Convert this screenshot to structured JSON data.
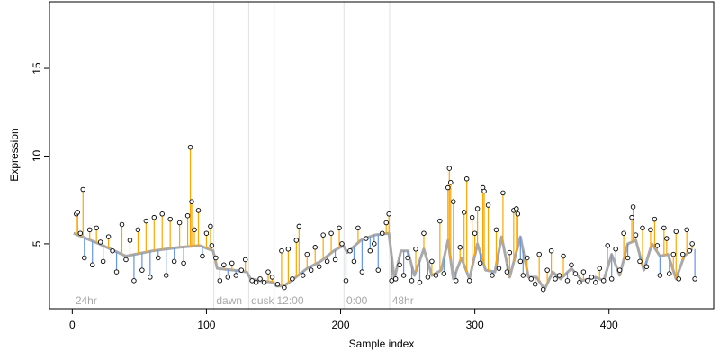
{
  "chart_data": {
    "type": "scatter",
    "title": "",
    "xlabel": "Sample index",
    "ylabel": "Expression",
    "xlim": [
      -17,
      478
    ],
    "ylim": [
      1.3,
      18.8
    ],
    "x_ticks": [
      0,
      100,
      200,
      300,
      400
    ],
    "y_ticks": [
      5,
      10,
      15
    ],
    "grid": false,
    "legend": "none",
    "colors": {
      "points_fill": "#ffffff",
      "points_stroke": "#000000",
      "up_segment": "#ffa500",
      "down_segment": "#6495ed",
      "model_line": "#a9a9a9",
      "divider": "#e0e0e0",
      "condition_text": "#a8a8a8"
    },
    "conditions": [
      {
        "label": "24hr",
        "start": 1
      },
      {
        "label": "dawn",
        "start": 106
      },
      {
        "label": "dusk",
        "start": 132
      },
      {
        "label": "12:00",
        "start": 151
      },
      {
        "label": "0:00",
        "start": 203
      },
      {
        "label": "48hr",
        "start": 237
      }
    ],
    "model_knots": [
      [
        1,
        5.6
      ],
      [
        20,
        5.0
      ],
      [
        40,
        4.3
      ],
      [
        60,
        4.6
      ],
      [
        80,
        4.8
      ],
      [
        95,
        4.9
      ],
      [
        105,
        4.6
      ],
      [
        108,
        3.6
      ],
      [
        120,
        3.5
      ],
      [
        130,
        3.4
      ],
      [
        133,
        3.0
      ],
      [
        140,
        2.9
      ],
      [
        150,
        2.8
      ],
      [
        152,
        2.6
      ],
      [
        158,
        2.6
      ],
      [
        165,
        3.0
      ],
      [
        175,
        3.6
      ],
      [
        185,
        4.0
      ],
      [
        195,
        4.6
      ],
      [
        202,
        4.9
      ],
      [
        205,
        4.5
      ],
      [
        215,
        5.2
      ],
      [
        225,
        5.5
      ],
      [
        236,
        5.6
      ],
      [
        240,
        3.0
      ],
      [
        245,
        4.6
      ],
      [
        250,
        4.6
      ],
      [
        255,
        3.2
      ],
      [
        262,
        4.7
      ],
      [
        268,
        3.2
      ],
      [
        275,
        3.5
      ],
      [
        280,
        5.2
      ],
      [
        284,
        3.0
      ],
      [
        290,
        4.2
      ],
      [
        296,
        3.0
      ],
      [
        302,
        5.0
      ],
      [
        308,
        3.5
      ],
      [
        315,
        3.4
      ],
      [
        320,
        5.4
      ],
      [
        326,
        3.1
      ],
      [
        334,
        5.4
      ],
      [
        340,
        3.1
      ],
      [
        346,
        3.1
      ],
      [
        352,
        2.4
      ],
      [
        358,
        3.4
      ],
      [
        364,
        3.0
      ],
      [
        372,
        3.6
      ],
      [
        380,
        2.9
      ],
      [
        390,
        3.1
      ],
      [
        396,
        2.9
      ],
      [
        402,
        4.4
      ],
      [
        408,
        3.2
      ],
      [
        414,
        5.0
      ],
      [
        420,
        5.2
      ],
      [
        426,
        3.5
      ],
      [
        432,
        5.0
      ],
      [
        438,
        4.3
      ],
      [
        444,
        4.4
      ],
      [
        450,
        3.0
      ],
      [
        456,
        4.3
      ],
      [
        462,
        4.7
      ]
    ],
    "point_samples": [
      [
        3,
        6.7
      ],
      [
        4,
        6.8
      ],
      [
        6,
        5.6
      ],
      [
        8,
        8.1
      ],
      [
        9,
        4.2
      ],
      [
        13,
        5.8
      ],
      [
        15,
        3.8
      ],
      [
        18,
        5.9
      ],
      [
        21,
        5.1
      ],
      [
        23,
        4.0
      ],
      [
        27,
        5.4
      ],
      [
        30,
        4.6
      ],
      [
        33,
        3.4
      ],
      [
        37,
        6.1
      ],
      [
        40,
        4.1
      ],
      [
        43,
        5.2
      ],
      [
        46,
        2.9
      ],
      [
        49,
        5.8
      ],
      [
        52,
        3.5
      ],
      [
        55,
        6.3
      ],
      [
        58,
        3.1
      ],
      [
        61,
        6.5
      ],
      [
        64,
        4.2
      ],
      [
        67,
        6.7
      ],
      [
        70,
        3.2
      ],
      [
        73,
        6.4
      ],
      [
        76,
        4.0
      ],
      [
        80,
        6.2
      ],
      [
        83,
        3.9
      ],
      [
        86,
        6.6
      ],
      [
        88,
        10.5
      ],
      [
        89,
        7.4
      ],
      [
        91,
        5.8
      ],
      [
        94,
        6.9
      ],
      [
        97,
        4.3
      ],
      [
        100,
        5.6
      ],
      [
        103,
        6.0
      ],
      [
        104,
        4.9
      ],
      [
        107,
        4.2
      ],
      [
        110,
        2.9
      ],
      [
        113,
        3.8
      ],
      [
        116,
        3.1
      ],
      [
        119,
        3.9
      ],
      [
        122,
        3.2
      ],
      [
        126,
        3.5
      ],
      [
        129,
        4.1
      ],
      [
        134,
        2.9
      ],
      [
        137,
        2.8
      ],
      [
        140,
        3.0
      ],
      [
        143,
        2.8
      ],
      [
        146,
        3.4
      ],
      [
        149,
        3.1
      ],
      [
        153,
        2.7
      ],
      [
        156,
        4.6
      ],
      [
        158,
        2.5
      ],
      [
        161,
        4.7
      ],
      [
        164,
        3.0
      ],
      [
        167,
        5.2
      ],
      [
        169,
        6.0
      ],
      [
        172,
        3.2
      ],
      [
        175,
        4.4
      ],
      [
        178,
        3.5
      ],
      [
        181,
        4.8
      ],
      [
        184,
        3.7
      ],
      [
        187,
        5.5
      ],
      [
        190,
        4.0
      ],
      [
        193,
        5.6
      ],
      [
        196,
        4.1
      ],
      [
        199,
        5.9
      ],
      [
        201,
        5.0
      ],
      [
        204,
        2.9
      ],
      [
        207,
        4.6
      ],
      [
        210,
        4.0
      ],
      [
        213,
        5.9
      ],
      [
        216,
        3.4
      ],
      [
        219,
        5.3
      ],
      [
        222,
        4.6
      ],
      [
        225,
        5.0
      ],
      [
        228,
        3.5
      ],
      [
        231,
        5.6
      ],
      [
        234,
        6.2
      ],
      [
        236,
        6.7
      ],
      [
        238,
        2.9
      ],
      [
        241,
        3.0
      ],
      [
        244,
        3.8
      ],
      [
        247,
        3.2
      ],
      [
        250,
        4.2
      ],
      [
        253,
        2.9
      ],
      [
        256,
        4.7
      ],
      [
        259,
        2.8
      ],
      [
        262,
        5.6
      ],
      [
        265,
        3.1
      ],
      [
        268,
        4.0
      ],
      [
        271,
        3.2
      ],
      [
        274,
        6.3
      ],
      [
        277,
        3.3
      ],
      [
        280,
        8.2
      ],
      [
        281,
        9.3
      ],
      [
        282,
        8.5
      ],
      [
        284,
        7.4
      ],
      [
        286,
        2.9
      ],
      [
        289,
        4.8
      ],
      [
        292,
        6.8
      ],
      [
        294,
        8.7
      ],
      [
        296,
        2.9
      ],
      [
        298,
        6.5
      ],
      [
        300,
        5.6
      ],
      [
        302,
        7.0
      ],
      [
        304,
        3.9
      ],
      [
        306,
        8.2
      ],
      [
        307,
        8.0
      ],
      [
        310,
        7.2
      ],
      [
        313,
        3.2
      ],
      [
        316,
        5.8
      ],
      [
        318,
        3.6
      ],
      [
        321,
        7.9
      ],
      [
        324,
        3.4
      ],
      [
        326,
        4.5
      ],
      [
        329,
        6.9
      ],
      [
        331,
        7.0
      ],
      [
        332,
        6.7
      ],
      [
        334,
        4.0
      ],
      [
        336,
        3.2
      ],
      [
        339,
        4.2
      ],
      [
        342,
        3.0
      ],
      [
        345,
        2.7
      ],
      [
        348,
        4.4
      ],
      [
        351,
        2.4
      ],
      [
        354,
        3.5
      ],
      [
        357,
        4.6
      ],
      [
        360,
        3.0
      ],
      [
        363,
        3.2
      ],
      [
        366,
        4.3
      ],
      [
        369,
        2.9
      ],
      [
        372,
        3.8
      ],
      [
        375,
        3.3
      ],
      [
        378,
        2.8
      ],
      [
        381,
        3.4
      ],
      [
        384,
        2.9
      ],
      [
        387,
        3.1
      ],
      [
        390,
        2.8
      ],
      [
        393,
        3.6
      ],
      [
        396,
        2.9
      ],
      [
        399,
        4.9
      ],
      [
        402,
        3.0
      ],
      [
        405,
        4.7
      ],
      [
        408,
        3.5
      ],
      [
        411,
        5.6
      ],
      [
        414,
        4.2
      ],
      [
        417,
        6.5
      ],
      [
        418,
        7.1
      ],
      [
        420,
        5.5
      ],
      [
        423,
        4.0
      ],
      [
        425,
        5.9
      ],
      [
        428,
        3.7
      ],
      [
        431,
        5.8
      ],
      [
        434,
        6.4
      ],
      [
        436,
        4.9
      ],
      [
        438,
        3.2
      ],
      [
        441,
        5.9
      ],
      [
        443,
        5.3
      ],
      [
        445,
        3.3
      ],
      [
        448,
        4.4
      ],
      [
        450,
        5.7
      ],
      [
        452,
        3.0
      ],
      [
        455,
        4.4
      ],
      [
        458,
        5.8
      ],
      [
        460,
        4.6
      ],
      [
        462,
        5.0
      ],
      [
        464,
        3.0
      ]
    ]
  }
}
